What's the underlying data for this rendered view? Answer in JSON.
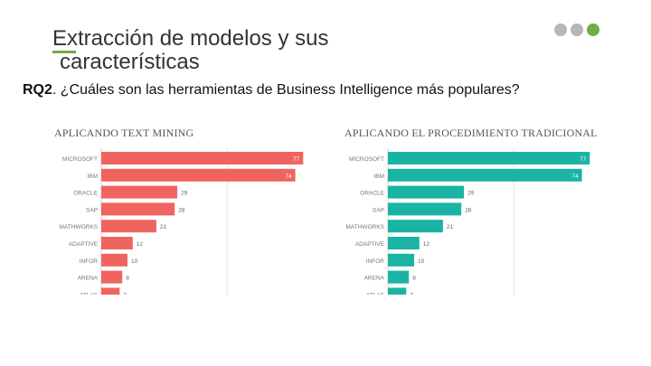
{
  "slide": {
    "title_line1": "Extracción de modelos y sus",
    "title_line2": "características",
    "question_prefix": "RQ2",
    "question_text": ". ¿Cuáles son las herramientas de Business Intelligence más populares?"
  },
  "colors": {
    "accent": "#70ad47",
    "dot_inactive": "#b7b7b7",
    "dot_active": "#70ad47",
    "series_left": "#f06460",
    "series_right": "#1bb3a4"
  },
  "chart_data": [
    {
      "type": "bar",
      "orientation": "horizontal",
      "title": "APLICANDO TEXT MINING",
      "categories": [
        "MICROSOFT",
        "IBM",
        "ORACLE",
        "SAP",
        "MATHWORKS",
        "ADAPTIVE",
        "INFOR",
        "ARENA",
        "ATLAS"
      ],
      "values": [
        77,
        74,
        29,
        28,
        21,
        12,
        10,
        8,
        7
      ],
      "xlim": [
        0,
        80
      ],
      "grid": true
    },
    {
      "type": "bar",
      "orientation": "horizontal",
      "title": "APLICANDO EL PROCEDIMIENTO TRADICIONAL",
      "categories": [
        "MICROSOFT",
        "IBM",
        "ORACLE",
        "SAP",
        "MATHWORKS",
        "ADAPTIVE",
        "INFOR",
        "ARENA",
        "ATLAS"
      ],
      "values": [
        77,
        74,
        29,
        28,
        21,
        12,
        10,
        8,
        7
      ],
      "xlim": [
        0,
        80
      ],
      "grid": true
    }
  ]
}
